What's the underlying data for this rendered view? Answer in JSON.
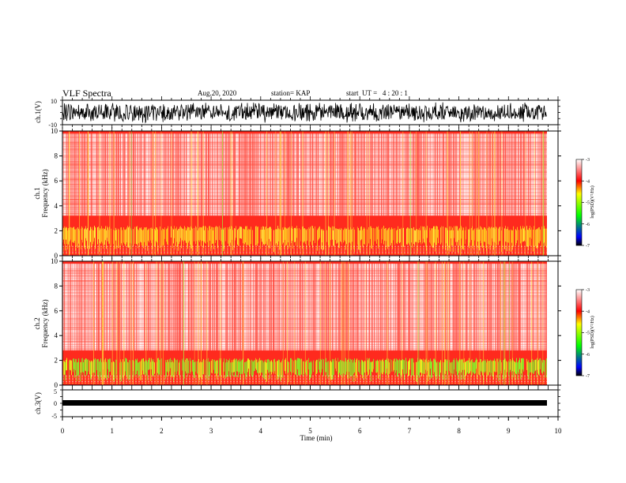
{
  "header": {
    "title": "VLF Spectra",
    "date": "Aug.20, 2020",
    "station": "station= KAP",
    "start": "start  UT =   4 : 20 : 1"
  },
  "colors": {
    "colorbar": [
      "#000000",
      "#0000ff",
      "#00ff00",
      "#ffff00",
      "#ff0000",
      "#ffffff"
    ],
    "spectrogram_bg": "#ff2a1e",
    "speckle": "#ffffff"
  },
  "chart_data": [
    {
      "type": "line",
      "name": "ch1-waveform",
      "ylabel": "ch.1(V)",
      "ylim": [
        -10,
        10
      ],
      "yticks": [
        "10",
        "-10"
      ],
      "xlim": [
        0,
        10
      ]
    },
    {
      "type": "heatmap",
      "name": "ch1-spectrogram",
      "ylabel": "ch.1\nFrequency (kHz)",
      "ylabel_line1": "ch.1",
      "ylabel_line2": "Frequency (kHz)",
      "ylim": [
        0,
        10
      ],
      "yticks": [
        "0",
        "2",
        "4",
        "6",
        "8",
        "10"
      ],
      "xlim": [
        0,
        10
      ],
      "colorbar": {
        "label": "log(PSD)(V²/Hz)",
        "range": [
          -7,
          -3
        ],
        "ticks": [
          "-3",
          "-4",
          "-5",
          "-6",
          "-7"
        ]
      }
    },
    {
      "type": "heatmap",
      "name": "ch2-spectrogram",
      "ylabel": "ch.2\nFrequency (kHz)",
      "ylabel_line1": "ch.2",
      "ylabel_line2": "Frequency (kHz)",
      "ylim": [
        0,
        10
      ],
      "yticks": [
        "0",
        "2",
        "4",
        "6",
        "8",
        "10"
      ],
      "xlim": [
        0,
        10
      ],
      "colorbar": {
        "label": "log(PSD)(V²/Hz)",
        "range": [
          -7,
          -3
        ],
        "ticks": [
          "-3",
          "-4",
          "-5",
          "-6",
          "-7"
        ]
      }
    },
    {
      "type": "line",
      "name": "ch3-waveform",
      "ylabel": "ch.3(V)",
      "ylim": [
        -5,
        5
      ],
      "yticks": [
        "5",
        "0",
        "-5"
      ],
      "xlim": [
        0,
        10
      ],
      "xlabel": "Time (min)",
      "xticks": [
        "0",
        "1",
        "2",
        "3",
        "4",
        "5",
        "6",
        "7",
        "8",
        "9",
        "10"
      ]
    }
  ]
}
